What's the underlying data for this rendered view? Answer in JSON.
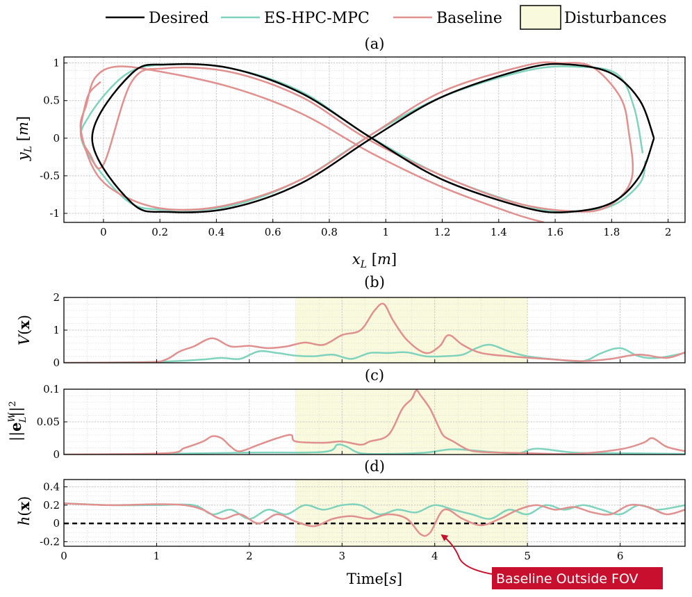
{
  "legend": [
    {
      "label": "Desired",
      "color": "#000000",
      "kind": "line"
    },
    {
      "label": "ES-HPC-MPC",
      "color": "#7fd3bd",
      "kind": "line"
    },
    {
      "label": "Baseline",
      "color": "#e0908e",
      "kind": "line"
    },
    {
      "label": "Disturbances",
      "color": "#f9f9dd",
      "kind": "patch"
    }
  ],
  "panel_labels": [
    "(a)",
    "(b)",
    "(c)",
    "(d)"
  ],
  "colors": {
    "desired": "#000000",
    "es": "#7fd3bd",
    "baseline": "#e0908e",
    "disturbance": "#f9f9dd",
    "callout": "#c8102e"
  },
  "annotation": {
    "text": "Baseline Outside FOV",
    "color": "#c8102e"
  },
  "time_xlabel": "Time[s]",
  "chart_data": [
    {
      "id": "a",
      "type": "line",
      "xlabel": "x_L [m]",
      "ylabel": "y_L [m]",
      "xlim": [
        -0.14,
        2.06
      ],
      "ylim": [
        -1.12,
        1.08
      ],
      "xticks": [
        0,
        0.2,
        0.4,
        0.6,
        0.8,
        1,
        1.2,
        1.4,
        1.6,
        1.8,
        2
      ],
      "xticklabels": [
        "0",
        "0.2",
        "0.4",
        "0.6",
        "0.8",
        "1",
        "1.2",
        "1.4",
        "1.6",
        "1.8",
        "2"
      ],
      "yticks": [
        -1,
        -0.5,
        0,
        0.5,
        1
      ],
      "yticklabels": [
        "-1",
        "-0.5",
        "0",
        "0.5",
        "1"
      ],
      "grid": true,
      "series": [
        {
          "name": "Desired",
          "color": "#000000",
          "x": [
            1.95,
            1.9,
            1.8,
            1.65,
            1.5,
            1.2,
            0.95,
            0.7,
            0.45,
            0.23,
            0.1,
            -0.04,
            0.1,
            0.23,
            0.45,
            0.7,
            0.95,
            1.2,
            1.5,
            1.65,
            1.8,
            1.9,
            1.95
          ],
          "y": [
            0.0,
            0.5,
            0.86,
            0.98,
            0.93,
            0.55,
            0.0,
            -0.6,
            -0.93,
            -0.98,
            -0.86,
            0.0,
            0.86,
            0.98,
            0.93,
            0.6,
            0.0,
            -0.55,
            -0.93,
            -0.98,
            -0.86,
            -0.5,
            0.0
          ]
        },
        {
          "name": "ES-HPC-MPC",
          "color": "#7fd3bd",
          "x": [
            1.91,
            1.88,
            1.82,
            1.68,
            1.5,
            1.2,
            0.95,
            0.7,
            0.45,
            0.22,
            0.08,
            -0.07,
            -0.05,
            0.08,
            0.22,
            0.45,
            0.7,
            0.93,
            1.2,
            1.5,
            1.66,
            1.8,
            1.9,
            1.92
          ],
          "y": [
            -0.2,
            0.4,
            0.85,
            0.95,
            0.9,
            0.55,
            0.05,
            -0.55,
            -0.9,
            -0.95,
            -0.82,
            -0.1,
            0.3,
            0.85,
            0.98,
            0.93,
            0.62,
            0.05,
            -0.5,
            -0.9,
            -0.97,
            -0.9,
            -0.6,
            -0.3
          ]
        },
        {
          "name": "Baseline",
          "color": "#e0908e",
          "x": [
            -0.01,
            -0.05,
            -0.07,
            -0.08,
            -0.05,
            0.0,
            0.1,
            0.22,
            0.45,
            0.7,
            0.93,
            1.2,
            1.45,
            1.65,
            1.78,
            1.87,
            1.86,
            1.83,
            1.73,
            1.62,
            1.5,
            1.2,
            0.95,
            0.7,
            0.45,
            0.25,
            0.1,
            -0.02,
            -0.08,
            -0.06,
            -0.03,
            0.04,
            0.18,
            0.45,
            0.7,
            0.95,
            1.2,
            1.45,
            1.56
          ],
          "y": [
            0.75,
            0.6,
            0.35,
            0.05,
            -0.2,
            -0.35,
            0.75,
            0.93,
            0.88,
            0.55,
            0.0,
            -0.5,
            -0.85,
            -0.97,
            -0.92,
            -0.55,
            0.1,
            0.55,
            0.95,
            1.0,
            0.97,
            0.62,
            0.05,
            -0.55,
            -0.88,
            -0.95,
            -0.82,
            -0.5,
            0.1,
            0.45,
            0.8,
            0.95,
            0.9,
            0.68,
            0.33,
            -0.2,
            -0.65,
            -1.0,
            -1.12
          ]
        }
      ]
    },
    {
      "id": "b",
      "type": "line",
      "xlabel": "",
      "ylabel": "V(x)",
      "xlim": [
        0,
        6.7
      ],
      "ylim": [
        0,
        2
      ],
      "xticks": [
        0,
        1,
        2,
        3,
        4,
        5,
        6
      ],
      "xticklabels": [
        "",
        "",
        "",
        "",
        "",
        "",
        ""
      ],
      "yticks": [
        0,
        1,
        2
      ],
      "yticklabels": [
        "0",
        "1",
        "2"
      ],
      "grid": true,
      "shade": [
        2.5,
        5.0
      ],
      "series": [
        {
          "name": "ES-HPC-MPC",
          "color": "#7fd3bd",
          "x": [
            0,
            0.8,
            1.2,
            1.5,
            1.7,
            1.9,
            2.1,
            2.3,
            2.5,
            2.7,
            2.9,
            3.1,
            3.3,
            3.5,
            3.7,
            3.9,
            4.1,
            4.3,
            4.45,
            4.6,
            4.8,
            5.0,
            5.3,
            5.6,
            5.8,
            6.0,
            6.2,
            6.4,
            6.7
          ],
          "y": [
            0,
            0.02,
            0.05,
            0.1,
            0.15,
            0.12,
            0.35,
            0.3,
            0.22,
            0.2,
            0.25,
            0.12,
            0.3,
            0.3,
            0.32,
            0.2,
            0.2,
            0.25,
            0.45,
            0.55,
            0.35,
            0.2,
            0.1,
            0.05,
            0.3,
            0.45,
            0.2,
            0.15,
            0.3
          ]
        },
        {
          "name": "Baseline",
          "color": "#e0908e",
          "x": [
            0,
            0.9,
            1.1,
            1.25,
            1.4,
            1.6,
            1.8,
            2.0,
            2.2,
            2.4,
            2.6,
            2.8,
            3.0,
            3.2,
            3.35,
            3.45,
            3.55,
            3.7,
            3.9,
            4.05,
            4.15,
            4.3,
            4.5,
            4.8,
            5.2,
            5.6,
            5.9,
            6.2,
            6.5,
            6.7
          ],
          "y": [
            0,
            0.02,
            0.1,
            0.35,
            0.5,
            0.75,
            0.5,
            0.52,
            0.45,
            0.5,
            0.62,
            0.55,
            0.85,
            1.0,
            1.6,
            1.8,
            1.3,
            0.7,
            0.3,
            0.5,
            0.85,
            0.55,
            0.3,
            0.2,
            0.12,
            0.05,
            0.12,
            0.25,
            0.15,
            0.32
          ]
        }
      ]
    },
    {
      "id": "c",
      "type": "line",
      "xlabel": "",
      "ylabel": "||e_L^W||^2",
      "xlim": [
        0,
        6.7
      ],
      "ylim": [
        0,
        0.1
      ],
      "xticks": [
        0,
        1,
        2,
        3,
        4,
        5,
        6
      ],
      "xticklabels": [
        "",
        "",
        "",
        "",
        "",
        "",
        ""
      ],
      "yticks": [
        0,
        0.05,
        0.1
      ],
      "yticklabels": [
        "0",
        "0.05",
        "0.1"
      ],
      "grid": true,
      "shade": [
        2.5,
        5.0
      ],
      "series": [
        {
          "name": "ES-HPC-MPC",
          "color": "#7fd3bd",
          "x": [
            0,
            1,
            2,
            2.8,
            2.95,
            3.05,
            3.2,
            3.5,
            3.9,
            4.2,
            4.6,
            4.9,
            5.1,
            5.5,
            6.0,
            6.7
          ],
          "y": [
            0,
            0.001,
            0.003,
            0.004,
            0.015,
            0.012,
            0.002,
            0.001,
            0.003,
            0.008,
            0.004,
            0.002,
            0.009,
            0.003,
            0.002,
            0.001
          ]
        },
        {
          "name": "Baseline",
          "color": "#e0908e",
          "x": [
            0,
            1.1,
            1.3,
            1.5,
            1.6,
            1.7,
            1.8,
            1.9,
            2.1,
            2.3,
            2.45,
            2.5,
            2.8,
            3.0,
            3.2,
            3.3,
            3.5,
            3.65,
            3.75,
            3.8,
            3.85,
            3.95,
            4.05,
            4.1,
            4.2,
            4.35,
            4.5,
            5.0,
            5.5,
            6.0,
            6.25,
            6.35,
            6.5,
            6.7
          ],
          "y": [
            0,
            0.002,
            0.01,
            0.02,
            0.028,
            0.025,
            0.012,
            0.005,
            0.015,
            0.025,
            0.03,
            0.02,
            0.018,
            0.02,
            0.015,
            0.02,
            0.03,
            0.07,
            0.085,
            0.098,
            0.09,
            0.07,
            0.04,
            0.028,
            0.02,
            0.008,
            0.004,
            0.002,
            0.001,
            0.008,
            0.018,
            0.025,
            0.012,
            0.005
          ]
        }
      ]
    },
    {
      "id": "d",
      "type": "line",
      "xlabel": "Time[s]",
      "ylabel": "h(x)",
      "xlim": [
        0,
        6.7
      ],
      "ylim": [
        -0.25,
        0.48
      ],
      "xticks": [
        0,
        1,
        2,
        3,
        4,
        5,
        6
      ],
      "xticklabels": [
        "0",
        "1",
        "2",
        "3",
        "4",
        "5",
        "6"
      ],
      "yticks": [
        -0.2,
        0,
        0.2,
        0.4
      ],
      "yticklabels": [
        "-0.2",
        "0",
        "0.2",
        "0.4"
      ],
      "grid": true,
      "shade": [
        2.5,
        5.0
      ],
      "reference_line": 0,
      "series": [
        {
          "name": "ES-HPC-MPC",
          "color": "#7fd3bd",
          "x": [
            0,
            0.5,
            1.0,
            1.4,
            1.6,
            1.8,
            2.0,
            2.2,
            2.4,
            2.6,
            2.8,
            3.0,
            3.2,
            3.4,
            3.6,
            3.8,
            4.0,
            4.2,
            4.4,
            4.6,
            4.8,
            5.0,
            5.2,
            5.4,
            5.6,
            5.8,
            6.0,
            6.2,
            6.4,
            6.7
          ],
          "y": [
            0.22,
            0.2,
            0.2,
            0.2,
            0.1,
            0.15,
            0.05,
            0.15,
            0.1,
            0.2,
            0.15,
            0.2,
            0.2,
            0.1,
            0.15,
            0.12,
            0.2,
            0.15,
            0.1,
            0.05,
            0.15,
            0.1,
            0.2,
            0.15,
            0.2,
            0.15,
            0.1,
            0.2,
            0.15,
            0.2
          ]
        },
        {
          "name": "Baseline",
          "color": "#e0908e",
          "x": [
            0,
            0.5,
            1.0,
            1.3,
            1.5,
            1.7,
            1.9,
            2.1,
            2.3,
            2.5,
            2.7,
            2.9,
            3.1,
            3.3,
            3.5,
            3.7,
            3.85,
            3.95,
            4.1,
            4.3,
            4.5,
            4.7,
            4.9,
            5.1,
            5.3,
            5.5,
            5.7,
            5.9,
            6.1,
            6.3,
            6.5,
            6.7
          ],
          "y": [
            0.22,
            0.2,
            0.21,
            0.2,
            0.15,
            0.05,
            0.1,
            0.0,
            0.1,
            0.02,
            -0.03,
            0.05,
            0.08,
            0.05,
            0.1,
            0.05,
            -0.12,
            -0.1,
            0.15,
            0.05,
            -0.02,
            0.05,
            0.15,
            0.2,
            0.15,
            0.18,
            0.12,
            0.1,
            0.2,
            0.18,
            0.1,
            0.15
          ]
        }
      ]
    }
  ]
}
